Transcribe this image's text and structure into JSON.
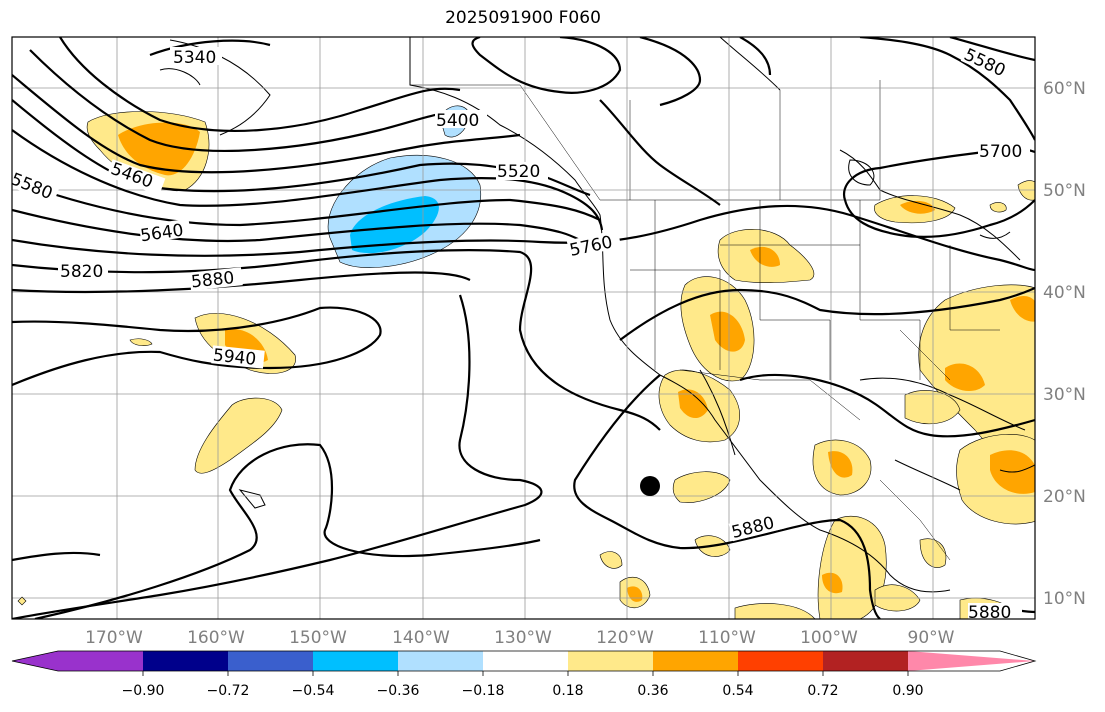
{
  "title": "2025091900 F060",
  "map": {
    "longitude_labels": [
      "170°W",
      "160°W",
      "150°W",
      "140°W",
      "130°W",
      "120°W",
      "110°W",
      "100°W",
      "90°W"
    ],
    "latitude_labels": [
      "60°N",
      "50°N",
      "40°N",
      "30°N",
      "20°N",
      "10°N"
    ],
    "contour_labels": [
      "5340",
      "5460",
      "5580",
      "5640",
      "5820",
      "5880",
      "5940",
      "5400",
      "5520",
      "5760",
      "5580",
      "5700",
      "5880",
      "5880"
    ],
    "marker": "storm-center-dot",
    "gridlines": true
  },
  "colorbar": {
    "tick_labels": [
      "−0.90",
      "−0.72",
      "−0.54",
      "−0.36",
      "−0.18",
      "0.18",
      "0.36",
      "0.54",
      "0.72",
      "0.90"
    ],
    "colors": [
      "#9932cc",
      "#00008b",
      "#3a5fcd",
      "#00bfff",
      "#b0e0ff",
      "#ffffff",
      "#ffe98a",
      "#ffa500",
      "#ff4000",
      "#b22222",
      "#ff88aa"
    ]
  }
}
